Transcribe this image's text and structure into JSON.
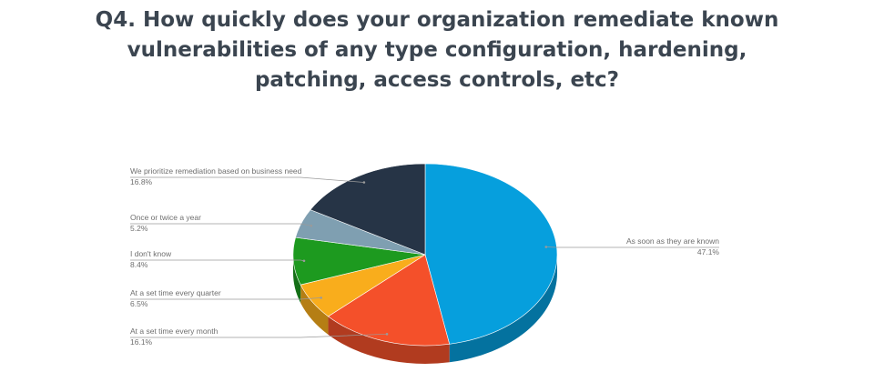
{
  "title_lines": [
    "Q4. How quickly does your organization remediate known",
    "vulnerabilities of any type configuration, hardening,",
    "patching, access controls, etc?"
  ],
  "chart_data": {
    "type": "pie",
    "style": "3d",
    "start": "top, clockwise",
    "slices": [
      {
        "label": "As soon as they are known",
        "value": 47.1,
        "value_label": "47.1%",
        "color": "#069fdd",
        "side": "#04729f"
      },
      {
        "label": "At a set time every month",
        "value": 16.1,
        "value_label": "16.1%",
        "color": "#f4502a",
        "side": "#b13b1f"
      },
      {
        "label": "At a set time every quarter",
        "value": 6.5,
        "value_label": "6.5%",
        "color": "#f9ad1c",
        "side": "#b57e14"
      },
      {
        "label": "I don't know",
        "value": 8.4,
        "value_label": "8.4%",
        "color": "#1d9a1f",
        "side": "#146f16"
      },
      {
        "label": "Once or twice a year",
        "value": 5.2,
        "value_label": "5.2%",
        "color": "#7f9fb1",
        "side": "#5c7380"
      },
      {
        "label": "We prioritize remediation based on business need",
        "value": 16.8,
        "value_label": "16.8%",
        "color": "#263446",
        "side": "#19232f"
      }
    ]
  }
}
